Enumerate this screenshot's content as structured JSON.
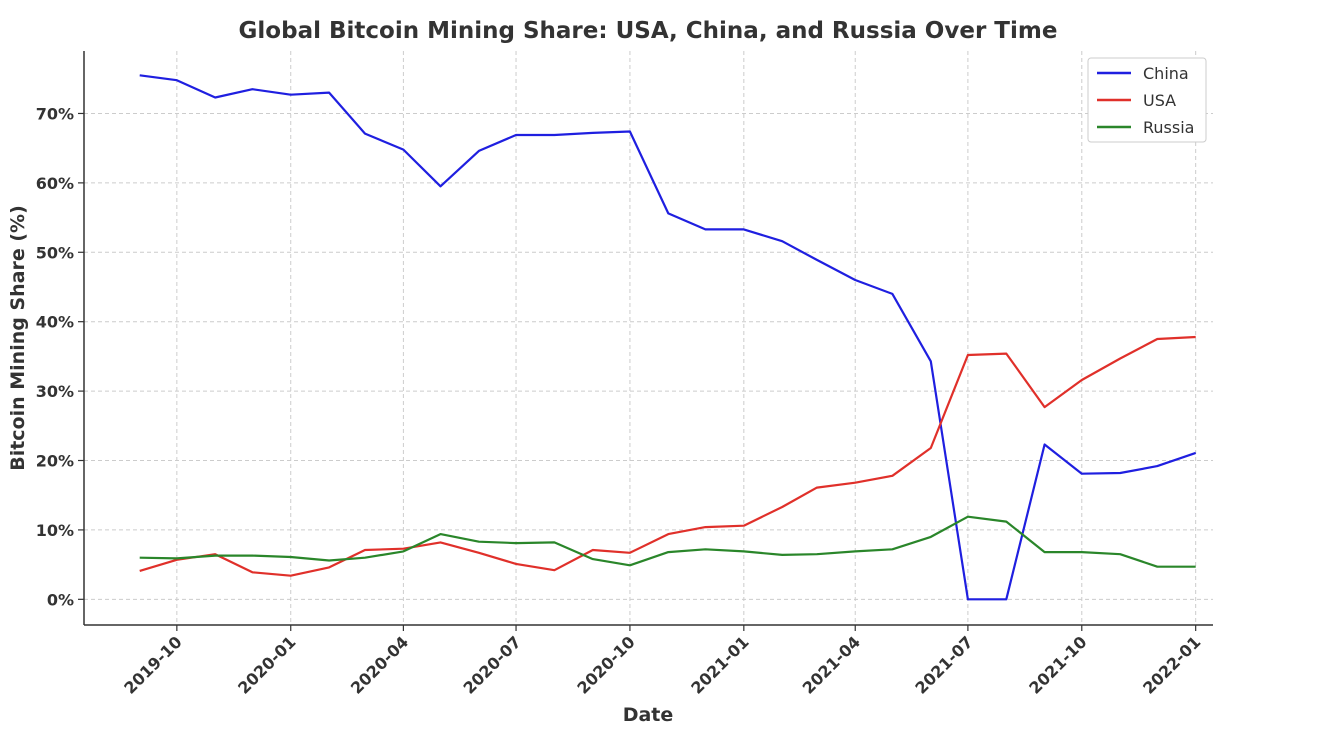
{
  "chart_data": {
    "type": "line",
    "title": "Global Bitcoin Mining Share: USA, China, and Russia Over Time",
    "xlabel": "Date",
    "ylabel": "Bitcoin Mining Share (%)",
    "ylim": [
      -3.7,
      79
    ],
    "xlim": [
      "2019-07-18",
      "2022-01-15"
    ],
    "y_ticks": [
      0,
      10,
      20,
      30,
      40,
      50,
      60,
      70
    ],
    "y_tick_labels": [
      "0%",
      "10%",
      "20%",
      "30%",
      "40%",
      "50%",
      "60%",
      "70%"
    ],
    "x_ticks": [
      "2019-10-01",
      "2020-01-01",
      "2020-04-01",
      "2020-07-01",
      "2020-10-01",
      "2021-01-01",
      "2021-04-01",
      "2021-07-01",
      "2021-10-01",
      "2022-01-01"
    ],
    "x_tick_labels": [
      "2019-10",
      "2020-01",
      "2020-04",
      "2020-07",
      "2020-10",
      "2021-01",
      "2021-04",
      "2021-07",
      "2021-10",
      "2022-01"
    ],
    "x": [
      "2019-09-01",
      "2019-10-01",
      "2019-11-01",
      "2019-12-01",
      "2020-01-01",
      "2020-02-01",
      "2020-03-01",
      "2020-04-01",
      "2020-05-01",
      "2020-06-01",
      "2020-07-01",
      "2020-08-01",
      "2020-09-01",
      "2020-10-01",
      "2020-11-01",
      "2020-12-01",
      "2021-01-01",
      "2021-02-01",
      "2021-03-01",
      "2021-04-01",
      "2021-05-01",
      "2021-06-01",
      "2021-07-01",
      "2021-08-01",
      "2021-09-01",
      "2021-10-01",
      "2021-11-01",
      "2021-12-01",
      "2022-01-01"
    ],
    "series": [
      {
        "name": "China",
        "color": "#1f1fe0",
        "values": [
          75.5,
          74.8,
          72.3,
          73.5,
          72.7,
          73.0,
          67.1,
          64.8,
          59.5,
          64.6,
          66.9,
          66.9,
          67.2,
          67.4,
          55.6,
          53.3,
          53.3,
          51.6,
          48.9,
          46.0,
          44.0,
          34.3,
          0.0,
          0.0,
          22.3,
          18.1,
          18.2,
          19.2,
          21.1
        ]
      },
      {
        "name": "USA",
        "color": "#e0302a",
        "values": [
          4.1,
          5.7,
          6.5,
          3.9,
          3.4,
          4.6,
          7.1,
          7.3,
          8.2,
          6.7,
          5.1,
          4.2,
          7.1,
          6.7,
          9.4,
          10.4,
          10.6,
          13.3,
          16.1,
          16.8,
          17.8,
          21.8,
          35.2,
          35.4,
          27.7,
          31.6,
          34.7,
          37.5,
          37.8
        ]
      },
      {
        "name": "Russia",
        "color": "#2a862a",
        "values": [
          6.0,
          5.9,
          6.3,
          6.3,
          6.1,
          5.6,
          6.0,
          6.9,
          9.4,
          8.3,
          8.1,
          8.2,
          5.8,
          4.9,
          6.8,
          7.2,
          6.9,
          6.4,
          6.5,
          6.9,
          7.2,
          9.0,
          11.9,
          11.2,
          6.8,
          6.8,
          6.5,
          4.7,
          4.7
        ]
      }
    ],
    "grid": true,
    "legend_position": "top-right"
  }
}
